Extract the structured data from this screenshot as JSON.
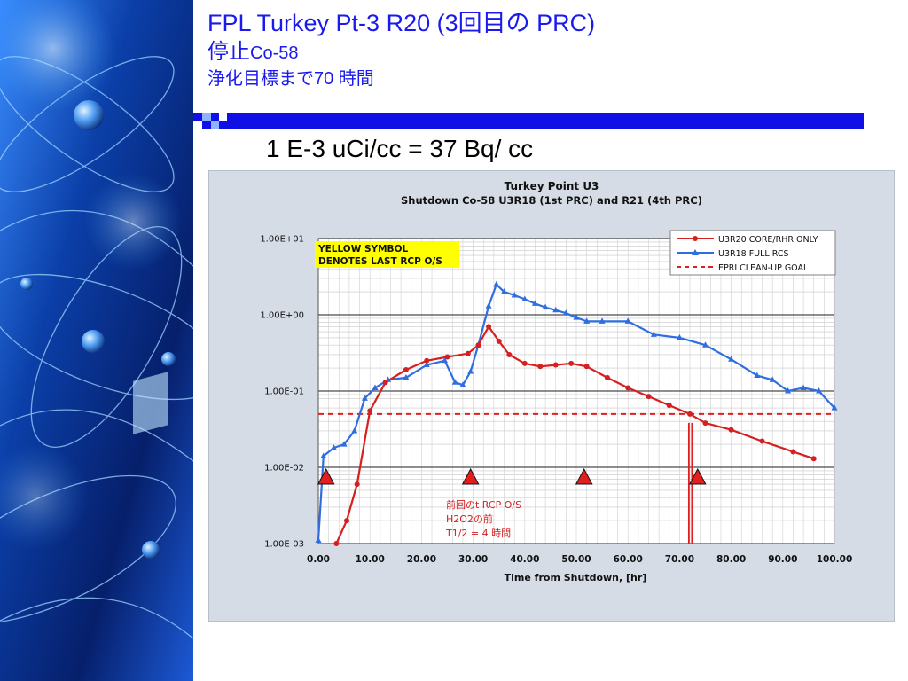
{
  "slide": {
    "title_line1": "FPL Turkey Pt-3 R20 (3回目の PRC)",
    "title_line2_jp": "停止",
    "title_line2_en": "Co-58",
    "title_line3": "浄化目標まで70 時間",
    "conversion_note": "1 E-3 uCi/cc = 37 Bq/ cc"
  },
  "colors": {
    "title_blue": "#1a1aee",
    "series_red": "#d42020",
    "series_blue": "#2f6ee0",
    "goal_red": "#e02020",
    "triangle_red": "#e41e1e",
    "callout_yellow": "#ffff00"
  },
  "chart_data": {
    "type": "line",
    "title": "Turkey Point U3",
    "subtitle": "Shutdown Co-58 U3R18 (1st PRC) and R21 (4th PRC)",
    "xlabel": "Time from Shutdown, [hr]",
    "ylabel": "",
    "xlim": [
      0,
      100
    ],
    "ylim": [
      0.001,
      10
    ],
    "y_scale": "log",
    "grid": true,
    "legend_position": "top-right",
    "x_ticks": [
      "0.00",
      "10.00",
      "20.00",
      "30.00",
      "40.00",
      "50.00",
      "60.00",
      "70.00",
      "80.00",
      "90.00",
      "100.00"
    ],
    "y_ticks": [
      "1.00E-03",
      "1.00E-02",
      "1.00E-01",
      "1.00E+00",
      "1.00E+01"
    ],
    "callout_lines": [
      "YELLOW SYMBOL",
      "DENOTES LAST RCP O/S"
    ],
    "series": [
      {
        "name": "U3R20 CORE/RHR ONLY",
        "color": "#d42020",
        "marker": "circle",
        "x": [
          3.5,
          5.5,
          7.5,
          10,
          13,
          17,
          21,
          25,
          29,
          31,
          33,
          35,
          37,
          40,
          43,
          46,
          49,
          52,
          56,
          60,
          64,
          68,
          72,
          75,
          80,
          86,
          92,
          96
        ],
        "y": [
          0.001,
          0.002,
          0.006,
          0.055,
          0.13,
          0.19,
          0.25,
          0.28,
          0.31,
          0.4,
          0.7,
          0.45,
          0.3,
          0.23,
          0.21,
          0.22,
          0.23,
          0.21,
          0.15,
          0.11,
          0.085,
          0.065,
          0.05,
          0.038,
          0.031,
          0.022,
          0.016,
          0.013
        ]
      },
      {
        "name": "U3R18 FULL RCS",
        "color": "#2f6ee0",
        "marker": "triangle",
        "x": [
          0,
          1,
          3,
          5,
          7,
          9,
          11,
          13.5,
          17,
          21,
          24.5,
          26.5,
          28,
          29.5,
          31,
          33,
          34.5,
          36,
          38,
          40,
          42,
          44,
          46,
          48,
          50,
          52,
          55,
          60,
          65,
          70,
          75,
          80,
          85,
          88,
          91,
          94,
          97,
          100
        ],
        "y": [
          0.0011,
          0.014,
          0.018,
          0.02,
          0.03,
          0.08,
          0.11,
          0.14,
          0.15,
          0.22,
          0.25,
          0.13,
          0.12,
          0.18,
          0.4,
          1.3,
          2.5,
          2.0,
          1.8,
          1.6,
          1.4,
          1.25,
          1.15,
          1.05,
          0.92,
          0.82,
          0.82,
          0.82,
          0.55,
          0.5,
          0.4,
          0.26,
          0.16,
          0.14,
          0.1,
          0.11,
          0.1,
          0.06
        ]
      },
      {
        "name": "EPRI CLEAN-UP GOAL",
        "color": "#e02020",
        "style": "dashed",
        "x": [
          0,
          100
        ],
        "y": [
          0.05,
          0.05
        ]
      }
    ],
    "last_rcp_os_markers_x": [
      1.5,
      29.5,
      51.5,
      73.5
    ],
    "goal_reached_lines_x": [
      71.8,
      72.4
    ],
    "annotation_lines": [
      "前回のt RCP O/S",
      "H2O2の前",
      "T1/2 = 4 時間"
    ]
  }
}
